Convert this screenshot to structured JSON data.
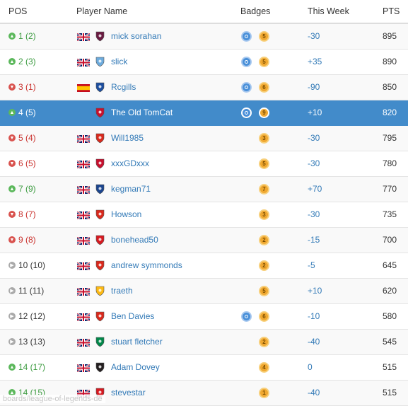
{
  "header": {
    "pos": "POS",
    "player": "Player Name",
    "badges": "Badges",
    "week": "This Week",
    "pts": "PTS"
  },
  "rows": [
    {
      "pos": "1 (2)",
      "trend": "up",
      "flag": "gb",
      "crest": "#6a1a41",
      "player": "mick sorahan",
      "target": true,
      "badge": "5",
      "week": "-30",
      "pts": "895"
    },
    {
      "pos": "2 (3)",
      "trend": "up",
      "flag": "gb",
      "crest": "#6cabdd",
      "player": "slick",
      "target": true,
      "badge": "5",
      "week": "+35",
      "pts": "890"
    },
    {
      "pos": "3 (1)",
      "trend": "down",
      "flag": "es",
      "crest": "#1d4fa0",
      "player": "Rcgills",
      "target": true,
      "badge": "6",
      "week": "-90",
      "pts": "850"
    },
    {
      "pos": "4 (5)",
      "trend": "up",
      "flag": "",
      "crest": "#c8102e",
      "player": "The Old TomCat",
      "target": true,
      "badge": "9",
      "week": "+10",
      "pts": "820",
      "highlight": true
    },
    {
      "pos": "5 (4)",
      "trend": "down",
      "flag": "gb",
      "crest": "#da291c",
      "player": "Will1985",
      "target": false,
      "badge": "3",
      "week": "-30",
      "pts": "795"
    },
    {
      "pos": "6 (5)",
      "trend": "down",
      "flag": "gb",
      "crest": "#c8102e",
      "player": "xxxGDxxx",
      "target": false,
      "badge": "5",
      "week": "-30",
      "pts": "780"
    },
    {
      "pos": "7 (9)",
      "trend": "up",
      "flag": "gb",
      "crest": "#1b458f",
      "player": "kegman71",
      "target": false,
      "badge": "7",
      "week": "+70",
      "pts": "770"
    },
    {
      "pos": "8 (7)",
      "trend": "down",
      "flag": "gb",
      "crest": "#da291c",
      "player": "Howson",
      "target": false,
      "badge": "3",
      "week": "-30",
      "pts": "735"
    },
    {
      "pos": "9 (8)",
      "trend": "down",
      "flag": "gb",
      "crest": "#d71920",
      "player": "bonehead50",
      "target": false,
      "badge": "2",
      "week": "-15",
      "pts": "700"
    },
    {
      "pos": "10 (10)",
      "trend": "same",
      "flag": "gb",
      "crest": "#da291c",
      "player": "andrew symmonds",
      "target": false,
      "badge": "2",
      "week": "-5",
      "pts": "645"
    },
    {
      "pos": "11 (11)",
      "trend": "same",
      "flag": "gb",
      "crest": "#fdb913",
      "player": "traeth",
      "target": false,
      "badge": "5",
      "week": "+10",
      "pts": "620"
    },
    {
      "pos": "12 (12)",
      "trend": "same",
      "flag": "gb",
      "crest": "#da291c",
      "player": "Ben Davies",
      "target": true,
      "badge": "6",
      "week": "-10",
      "pts": "580"
    },
    {
      "pos": "13 (13)",
      "trend": "same",
      "flag": "gb",
      "crest": "#018749",
      "player": "stuart fletcher",
      "target": false,
      "badge": "2",
      "week": "-40",
      "pts": "545"
    },
    {
      "pos": "14 (17)",
      "trend": "up",
      "flag": "gb",
      "crest": "#241f20",
      "player": "Adam Dovey",
      "target": false,
      "badge": "4",
      "week": "0",
      "pts": "515"
    },
    {
      "pos": "14 (15)",
      "trend": "up",
      "flag": "gb",
      "crest": "#d71920",
      "player": "stevestar",
      "target": false,
      "badge": "1",
      "week": "-40",
      "pts": "515"
    }
  ],
  "watermark": "boards/league-of-legends-de"
}
